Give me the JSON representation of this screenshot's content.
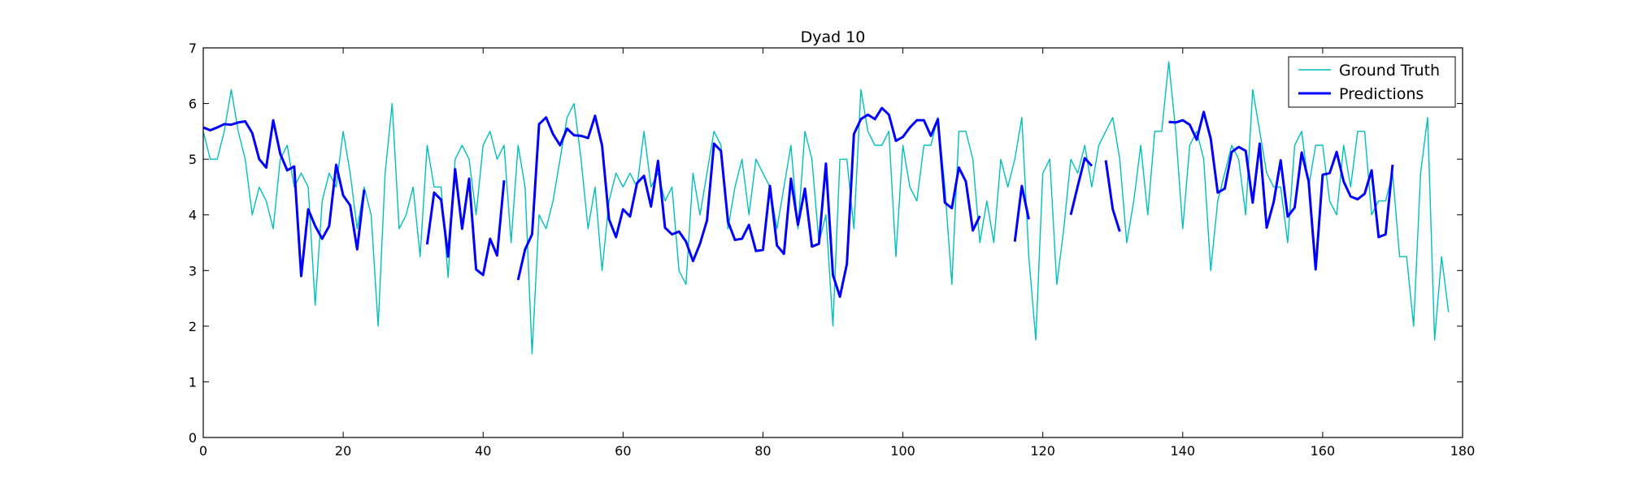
{
  "chart_data": {
    "type": "line",
    "title": "Dyad 10",
    "xlabel": "",
    "ylabel": "",
    "xlim": [
      0,
      180
    ],
    "ylim": [
      0,
      7
    ],
    "xticks": [
      0,
      20,
      40,
      60,
      80,
      100,
      120,
      140,
      160,
      180
    ],
    "yticks": [
      0,
      1,
      2,
      3,
      4,
      5,
      6,
      7
    ],
    "legend_position": "top-right",
    "grid": false,
    "series": [
      {
        "name": "Ground Truth",
        "color": "#00bfbf",
        "linewidth": "thin",
        "values": [
          5.5,
          5.0,
          5.0,
          5.5,
          6.25,
          5.5,
          5.0,
          4.0,
          4.5,
          4.25,
          3.75,
          5.0,
          5.25,
          4.5,
          4.75,
          4.5,
          2.375,
          4.25,
          4.75,
          4.5,
          5.5,
          4.75,
          3.75,
          4.5,
          4.0,
          2.0,
          4.75,
          6.0,
          3.75,
          4.0,
          4.5,
          3.25,
          5.25,
          4.5,
          4.5,
          2.875,
          5.0,
          5.25,
          5.0,
          4.0,
          5.25,
          5.5,
          5.0,
          5.25,
          3.5,
          5.25,
          4.5,
          1.5,
          4.0,
          3.75,
          4.25,
          5.0,
          5.75,
          6.0,
          5.0,
          3.75,
          4.5,
          3.0,
          4.25,
          4.75,
          4.5,
          4.75,
          4.5,
          5.5,
          4.5,
          4.75,
          4.25,
          4.5,
          3.0,
          2.75,
          4.75,
          4.0,
          4.75,
          5.5,
          5.25,
          3.75,
          4.5,
          5.0,
          4.0,
          5.0,
          4.75,
          4.5,
          3.75,
          4.5,
          5.25,
          3.75,
          5.5,
          5.0,
          3.5,
          4.0,
          2.0,
          5.0,
          5.0,
          3.75,
          6.25,
          5.5,
          5.25,
          5.25,
          5.5,
          3.25,
          5.25,
          4.5,
          4.25,
          5.25,
          5.25,
          5.75,
          4.5,
          2.75,
          5.5,
          5.5,
          5.0,
          3.5,
          4.25,
          3.5,
          5.0,
          4.5,
          5.0,
          5.75,
          3.25,
          1.75,
          4.75,
          5.0,
          2.75,
          3.75,
          5.0,
          4.75,
          5.25,
          4.5,
          5.25,
          5.5,
          5.75,
          5.0,
          3.5,
          4.25,
          5.25,
          4.0,
          5.5,
          5.5,
          6.75,
          5.5,
          3.75,
          5.25,
          5.5,
          5.0,
          3.0,
          4.25,
          4.75,
          5.25,
          5.0,
          4.0,
          6.25,
          5.5,
          4.75,
          4.5,
          4.5,
          3.5,
          5.25,
          5.5,
          4.5,
          5.25,
          5.25,
          4.25,
          4.0,
          5.25,
          4.5,
          5.5,
          5.5,
          4.0,
          4.25,
          4.25,
          4.75,
          3.25,
          3.25,
          2.0,
          4.75,
          5.75,
          1.75,
          3.25,
          2.25
        ]
      },
      {
        "name": "Predictions",
        "color": "#0000ff",
        "linewidth": "thick",
        "values": [
          5.57,
          5.52,
          5.57,
          5.63,
          5.62,
          5.66,
          5.68,
          5.47,
          5.0,
          4.85,
          5.7,
          5.1,
          4.8,
          4.87,
          2.9,
          4.1,
          3.8,
          3.57,
          3.8,
          4.9,
          4.35,
          4.17,
          3.38,
          4.45,
          null,
          null,
          null,
          null,
          null,
          null,
          null,
          null,
          3.47,
          4.4,
          4.27,
          3.25,
          4.82,
          3.75,
          4.65,
          3.02,
          2.92,
          3.57,
          3.27,
          4.62,
          null,
          2.83,
          3.38,
          3.65,
          5.63,
          5.75,
          5.45,
          5.25,
          5.55,
          5.43,
          5.42,
          5.38,
          5.78,
          5.25,
          3.92,
          3.6,
          4.1,
          3.97,
          4.57,
          4.7,
          4.15,
          4.97,
          3.77,
          3.65,
          3.7,
          3.52,
          3.17,
          3.48,
          3.9,
          5.28,
          5.15,
          3.88,
          3.55,
          3.57,
          3.82,
          3.35,
          3.37,
          4.52,
          3.45,
          3.3,
          4.65,
          3.82,
          4.47,
          3.43,
          3.48,
          4.92,
          2.92,
          2.53,
          3.12,
          5.45,
          5.72,
          5.8,
          5.72,
          5.92,
          5.8,
          5.33,
          5.4,
          5.57,
          5.7,
          5.7,
          5.42,
          5.72,
          4.22,
          4.12,
          4.85,
          4.6,
          3.72,
          3.98,
          null,
          null,
          null,
          null,
          3.52,
          4.52,
          3.92,
          null,
          null,
          null,
          null,
          null,
          4.0,
          4.52,
          5.02,
          4.88,
          null,
          4.98,
          4.1,
          3.7,
          null,
          null,
          null,
          null,
          null,
          null,
          5.67,
          5.66,
          5.7,
          5.62,
          5.35,
          5.85,
          5.37,
          4.4,
          4.47,
          5.13,
          5.22,
          5.15,
          4.22,
          5.28,
          3.77,
          4.23,
          4.98,
          3.97,
          4.13,
          5.12,
          4.6,
          3.02,
          4.72,
          4.75,
          5.13,
          4.6,
          4.33,
          4.28,
          4.38,
          4.8,
          3.6,
          3.65,
          4.9
        ]
      }
    ]
  }
}
